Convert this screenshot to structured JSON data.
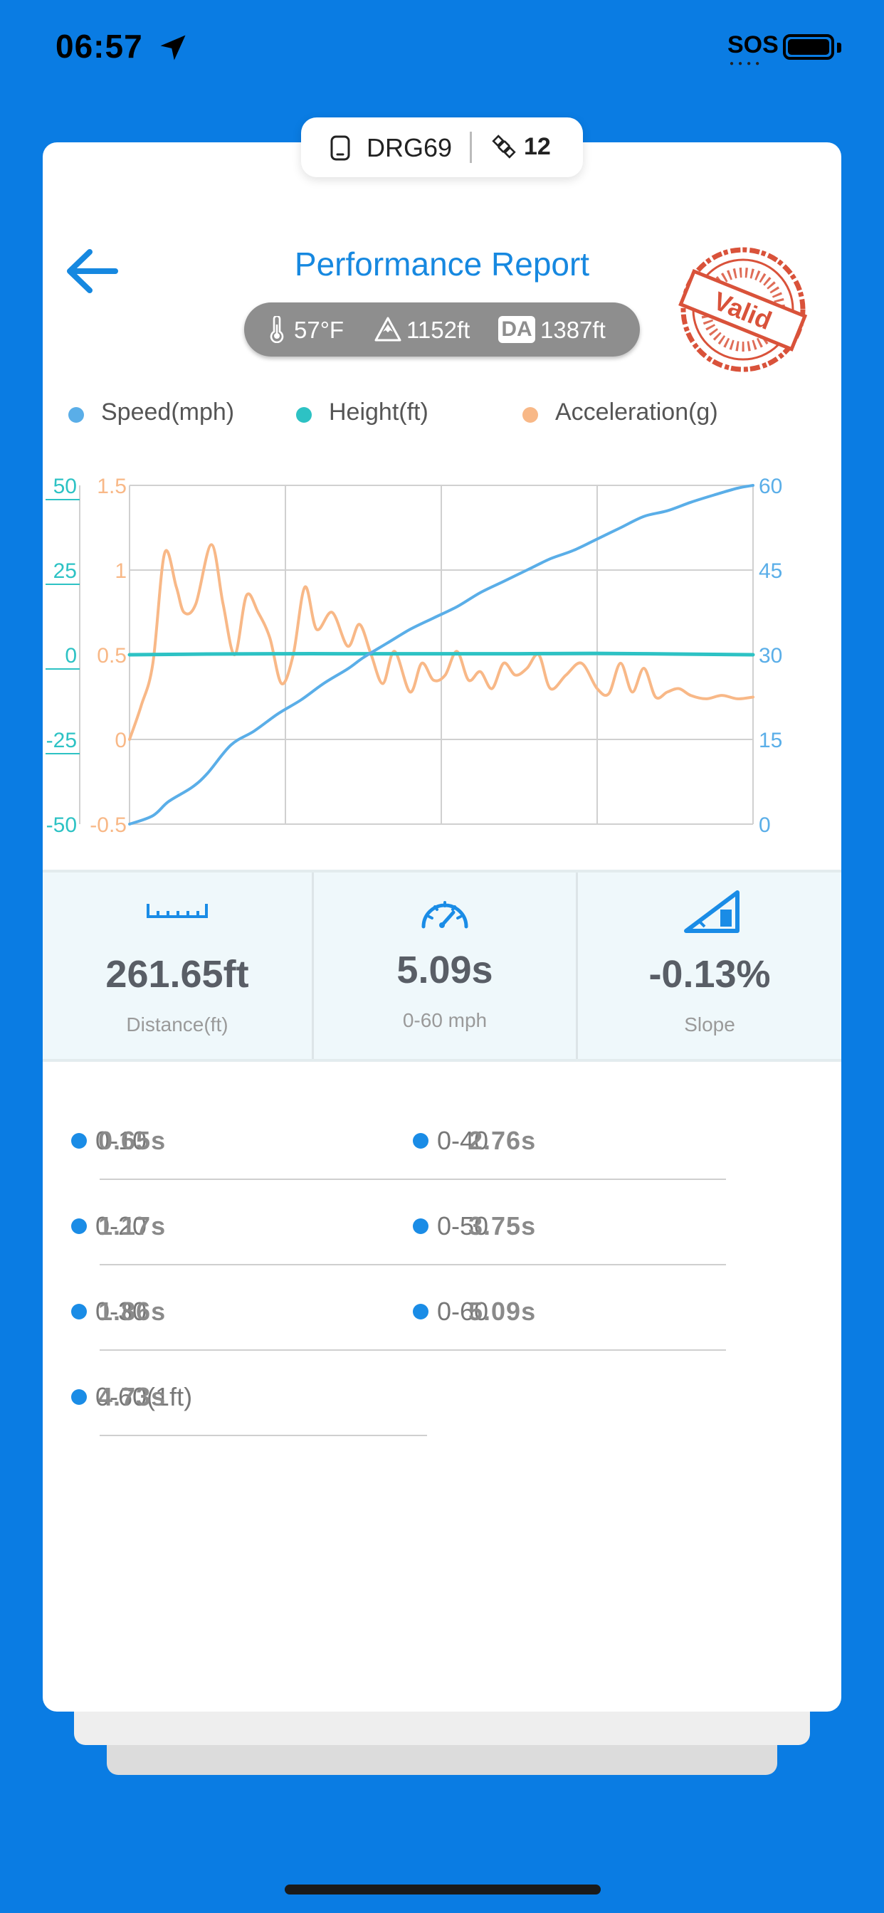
{
  "status_bar": {
    "time": "06:57",
    "sos": "SOS"
  },
  "device": {
    "name": "DRG69",
    "satellites": "12"
  },
  "header": {
    "title": "Performance Report",
    "stamp_text": "Valid"
  },
  "conditions": {
    "temperature": "57°F",
    "elevation": "1152ft",
    "da_label": "DA",
    "density_altitude": "1387ft"
  },
  "legend": [
    {
      "label": "Speed(mph)",
      "color": "#5AAEE8"
    },
    {
      "label": "Height(ft)",
      "color": "#2DC2C4"
    },
    {
      "label": "Acceleration(g)",
      "color": "#F8B887"
    }
  ],
  "chart_data": {
    "type": "line",
    "axes": {
      "height_ticks": [
        "50",
        "25",
        "0",
        "-25",
        "-50"
      ],
      "accel_ticks": [
        "1.5",
        "1",
        "0.5",
        "0",
        "-0.5"
      ],
      "speed_ticks": [
        "60",
        "45",
        "30",
        "15",
        "0"
      ],
      "height_range": [
        -50,
        50
      ],
      "accel_range": [
        -0.5,
        1.5
      ],
      "speed_range": [
        0,
        60
      ],
      "time_range": [
        0,
        8
      ]
    },
    "grid": true,
    "series": [
      {
        "name": "Speed(mph)",
        "color": "#5AAEE8",
        "x": [
          0,
          0.3,
          0.5,
          0.8,
          1.0,
          1.3,
          1.6,
          1.9,
          2.2,
          2.5,
          2.8,
          3.0,
          3.3,
          3.6,
          3.9,
          4.2,
          4.5,
          4.8,
          5.1,
          5.4,
          5.7,
          6.0,
          6.3,
          6.6,
          6.9,
          7.2,
          7.5,
          7.8,
          8.0
        ],
        "y": [
          0,
          1.5,
          4,
          6.5,
          9,
          14,
          16.5,
          19.5,
          22,
          25,
          27.5,
          29.5,
          32,
          34.5,
          36.5,
          38.5,
          41,
          43,
          45,
          47,
          48.5,
          50.5,
          52.5,
          54.5,
          55.5,
          57,
          58.3,
          59.5,
          60
        ]
      },
      {
        "name": "Height(ft)",
        "color": "#2DC2C4",
        "x": [
          0,
          1,
          2,
          3,
          4,
          5,
          6,
          7,
          8
        ],
        "y": [
          0,
          0.2,
          0.3,
          0.3,
          0.3,
          0.3,
          0.4,
          0.2,
          0
        ]
      },
      {
        "name": "Acceleration(g)",
        "color": "#F8B887",
        "x": [
          0,
          0.15,
          0.3,
          0.45,
          0.6,
          0.7,
          0.85,
          1.05,
          1.2,
          1.35,
          1.5,
          1.65,
          1.8,
          1.95,
          2.1,
          2.25,
          2.4,
          2.6,
          2.8,
          2.95,
          3.1,
          3.25,
          3.4,
          3.6,
          3.75,
          3.9,
          4.05,
          4.2,
          4.35,
          4.5,
          4.65,
          4.8,
          4.95,
          5.1,
          5.25,
          5.4,
          5.6,
          5.8,
          6.0,
          6.15,
          6.3,
          6.45,
          6.6,
          6.75,
          6.9,
          7.05,
          7.2,
          7.4,
          7.6,
          7.8,
          8.0
        ],
        "y": [
          0,
          0.2,
          0.45,
          1.1,
          0.9,
          0.75,
          0.8,
          1.15,
          0.8,
          0.5,
          0.85,
          0.75,
          0.6,
          0.33,
          0.5,
          0.9,
          0.65,
          0.75,
          0.55,
          0.68,
          0.5,
          0.33,
          0.52,
          0.28,
          0.45,
          0.35,
          0.38,
          0.52,
          0.35,
          0.4,
          0.3,
          0.45,
          0.38,
          0.42,
          0.5,
          0.3,
          0.38,
          0.45,
          0.3,
          0.27,
          0.45,
          0.28,
          0.42,
          0.25,
          0.28,
          0.3,
          0.26,
          0.24,
          0.26,
          0.24,
          0.25
        ]
      }
    ]
  },
  "stats": [
    {
      "value": "261.65ft",
      "label": "Distance(ft)",
      "icon": "ruler-icon"
    },
    {
      "value": "5.09s",
      "label": "0-60 mph",
      "icon": "speedometer-icon"
    },
    {
      "value": "-0.13%",
      "label": "Slope",
      "icon": "slope-icon"
    }
  ],
  "splits": [
    {
      "name": "0-10",
      "time": "0.65s"
    },
    {
      "name": "0-40",
      "time": "2.76s"
    },
    {
      "name": "0-20",
      "time": "1.17s"
    },
    {
      "name": "0-50",
      "time": "3.75s"
    },
    {
      "name": "0-30",
      "time": "1.86s"
    },
    {
      "name": "0-60",
      "time": "5.09s"
    },
    {
      "name": "0-60(1ft)",
      "time": "4.73s"
    }
  ]
}
